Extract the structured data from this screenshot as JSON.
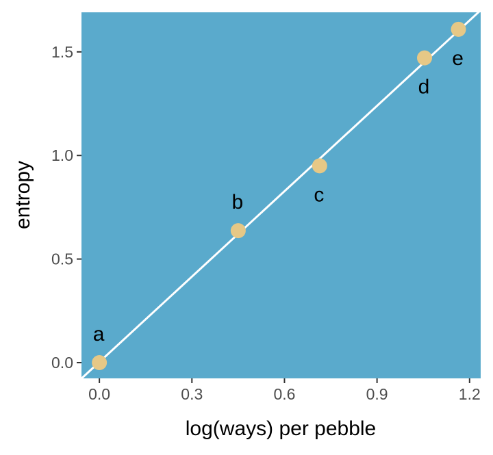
{
  "chart_data": {
    "type": "scatter",
    "xlabel": "log(ways) per pebble",
    "ylabel": "entropy",
    "xlim": [
      -0.058,
      1.236
    ],
    "ylim": [
      -0.076,
      1.691
    ],
    "x_ticks": [
      0.0,
      0.3,
      0.6,
      0.9,
      1.2
    ],
    "x_tick_labels": [
      "0.0",
      "0.3",
      "0.6",
      "0.9",
      "1.2"
    ],
    "y_ticks": [
      0.0,
      0.5,
      1.0,
      1.5
    ],
    "y_tick_labels": [
      "0.0",
      "0.5",
      "1.0",
      "1.5"
    ],
    "grid": false,
    "points": [
      {
        "label": "a",
        "x": 0.0,
        "y": 0.0,
        "label_pos": "above"
      },
      {
        "label": "b",
        "x": 0.45,
        "y": 0.637,
        "label_pos": "above"
      },
      {
        "label": "c",
        "x": 0.714,
        "y": 0.95,
        "label_pos": "below"
      },
      {
        "label": "d",
        "x": 1.054,
        "y": 1.471,
        "label_pos": "below"
      },
      {
        "label": "e",
        "x": 1.164,
        "y": 1.609,
        "label_pos": "below"
      }
    ],
    "fit_line": {
      "intercept": 0.003,
      "slope": 1.374
    },
    "colors": {
      "panel": "#5aaacc",
      "points": "#e6c886",
      "line": "#ffffff",
      "text": "#000000",
      "tick_text": "#4d4d4d"
    }
  }
}
